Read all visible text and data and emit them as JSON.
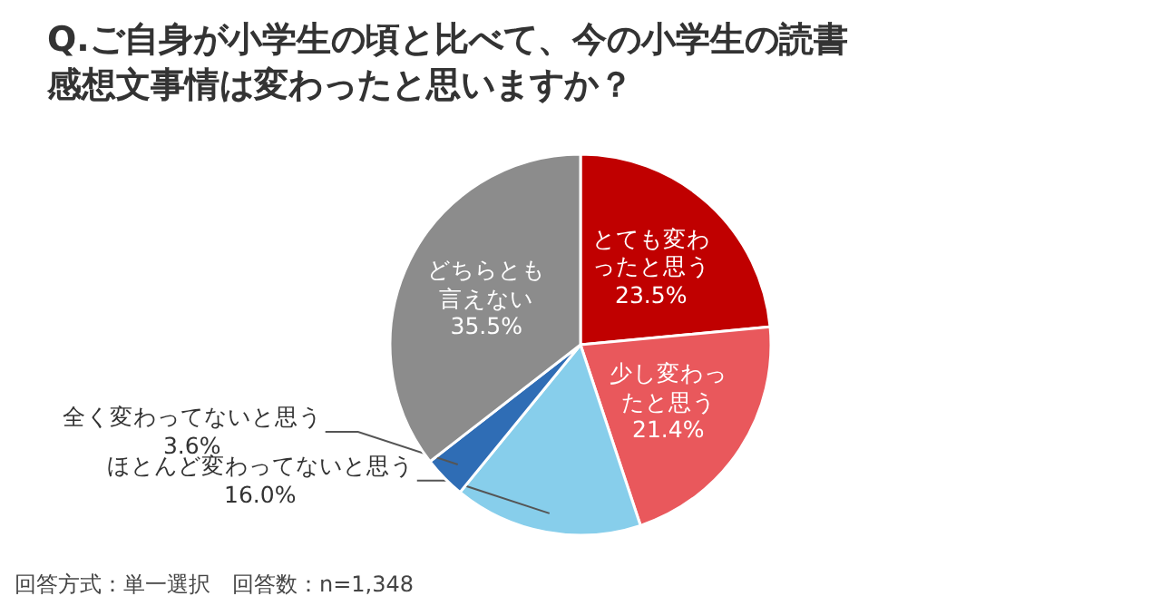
{
  "chart_data": {
    "type": "pie",
    "title": "Q.ご自身が小学生の頃と比べて、今の小学生の読書感想文事情は変わったと思いますか？",
    "categories": [
      "とても変わったと思う",
      "少し変わったと思う",
      "ほとんど変わってないと思う",
      "全く変わってないと思う",
      "どちらとも言えない"
    ],
    "values": [
      23.5,
      21.4,
      16.0,
      3.6,
      35.5
    ],
    "value_labels": [
      "23.5%",
      "21.4%",
      "16.0%",
      "3.6%",
      "35.5%"
    ],
    "colors": [
      "#c00000",
      "#e9585c",
      "#87ceeb",
      "#2f6db5",
      "#8c8c8c"
    ],
    "annotations": [
      "回答方式：単一選択　回答数：n=1,348"
    ]
  }
}
